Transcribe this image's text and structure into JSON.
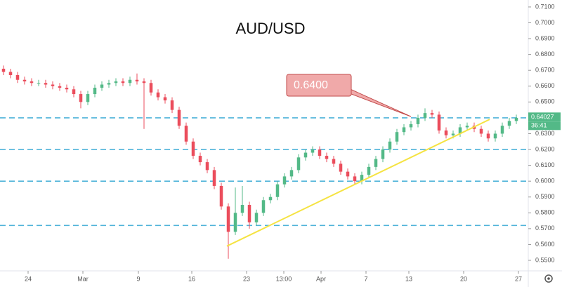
{
  "chart_data": {
    "type": "candlestick",
    "title": "AUD/USD",
    "open": [
      0.671,
      0.669,
      0.667,
      0.664,
      0.663,
      0.662,
      0.662,
      0.661,
      0.66,
      0.659,
      0.658,
      0.655,
      0.65,
      0.655,
      0.659,
      0.661,
      0.662,
      0.663,
      0.662,
      0.664,
      0.663,
      0.662,
      0.656,
      0.653,
      0.651,
      0.645,
      0.635,
      0.625,
      0.616,
      0.612,
      0.607,
      0.597,
      0.584,
      0.568,
      0.58,
      0.585,
      0.574,
      0.58,
      0.588,
      0.59,
      0.598,
      0.603,
      0.607,
      0.615,
      0.618,
      0.62,
      0.616,
      0.614,
      0.611,
      0.606,
      0.603,
      0.6,
      0.604,
      0.609,
      0.614,
      0.62,
      0.625,
      0.631,
      0.634,
      0.636,
      0.64,
      0.643,
      0.642,
      0.632,
      0.629,
      0.63,
      0.634,
      0.635,
      0.633,
      0.63,
      0.627,
      0.63,
      0.635,
      0.638
    ],
    "high": [
      0.673,
      0.671,
      0.669,
      0.666,
      0.665,
      0.664,
      0.664,
      0.663,
      0.662,
      0.661,
      0.66,
      0.657,
      0.657,
      0.661,
      0.663,
      0.664,
      0.665,
      0.665,
      0.666,
      0.668,
      0.665,
      0.664,
      0.658,
      0.655,
      0.653,
      0.647,
      0.637,
      0.627,
      0.618,
      0.614,
      0.609,
      0.599,
      0.586,
      0.596,
      0.597,
      0.587,
      0.582,
      0.59,
      0.592,
      0.6,
      0.605,
      0.609,
      0.617,
      0.62,
      0.622,
      0.622,
      0.618,
      0.616,
      0.613,
      0.608,
      0.605,
      0.606,
      0.611,
      0.616,
      0.622,
      0.627,
      0.633,
      0.636,
      0.638,
      0.642,
      0.646,
      0.645,
      0.644,
      0.634,
      0.632,
      0.636,
      0.637,
      0.637,
      0.635,
      0.632,
      0.632,
      0.637,
      0.64,
      0.642
    ],
    "low": [
      0.667,
      0.665,
      0.662,
      0.661,
      0.66,
      0.66,
      0.659,
      0.658,
      0.657,
      0.656,
      0.653,
      0.646,
      0.648,
      0.653,
      0.657,
      0.659,
      0.66,
      0.66,
      0.66,
      0.661,
      0.633,
      0.654,
      0.651,
      0.649,
      0.643,
      0.633,
      0.623,
      0.614,
      0.61,
      0.605,
      0.595,
      0.582,
      0.551,
      0.566,
      0.578,
      0.57,
      0.572,
      0.578,
      0.586,
      0.588,
      0.596,
      0.601,
      0.605,
      0.613,
      0.616,
      0.614,
      0.612,
      0.609,
      0.604,
      0.601,
      0.598,
      0.598,
      0.602,
      0.607,
      0.612,
      0.618,
      0.623,
      0.629,
      0.632,
      0.634,
      0.638,
      0.64,
      0.63,
      0.627,
      0.627,
      0.628,
      0.632,
      0.631,
      0.628,
      0.625,
      0.625,
      0.628,
      0.633,
      0.636
    ],
    "close": [
      0.669,
      0.667,
      0.664,
      0.663,
      0.662,
      0.662,
      0.661,
      0.66,
      0.659,
      0.658,
      0.655,
      0.65,
      0.655,
      0.659,
      0.661,
      0.662,
      0.663,
      0.662,
      0.664,
      0.663,
      0.662,
      0.656,
      0.653,
      0.651,
      0.645,
      0.635,
      0.625,
      0.616,
      0.612,
      0.607,
      0.597,
      0.584,
      0.568,
      0.58,
      0.585,
      0.574,
      0.58,
      0.588,
      0.59,
      0.598,
      0.603,
      0.607,
      0.615,
      0.618,
      0.62,
      0.616,
      0.614,
      0.611,
      0.606,
      0.603,
      0.6,
      0.604,
      0.609,
      0.614,
      0.62,
      0.625,
      0.631,
      0.634,
      0.636,
      0.64,
      0.643,
      0.642,
      0.632,
      0.629,
      0.63,
      0.634,
      0.635,
      0.633,
      0.63,
      0.627,
      0.63,
      0.635,
      0.638,
      0.64
    ],
    "up_color": "#53b987",
    "down_color": "#eb4d5c",
    "xlim": [
      -0.5,
      74.5
    ],
    "xticks": [
      {
        "value": 3.5,
        "label": "24"
      },
      {
        "value": 11.3,
        "label": "Mar"
      },
      {
        "value": 19.2,
        "label": "9"
      },
      {
        "value": 26.8,
        "label": "16"
      },
      {
        "value": 34.6,
        "label": "23"
      },
      {
        "value": 39.9,
        "label": "13:00"
      },
      {
        "value": 45.2,
        "label": "Apr"
      },
      {
        "value": 51.6,
        "label": "7"
      },
      {
        "value": 57.7,
        "label": "13"
      },
      {
        "value": 65.5,
        "label": "20"
      },
      {
        "value": 73.3,
        "label": "27"
      }
    ],
    "ylim": [
      0.5438,
      0.7144
    ],
    "yticks": [
      {
        "value": 0.55,
        "label": "0.5500"
      },
      {
        "value": 0.56,
        "label": "0.5600"
      },
      {
        "value": 0.57,
        "label": "0.5700"
      },
      {
        "value": 0.58,
        "label": "0.5800"
      },
      {
        "value": 0.59,
        "label": "0.5900"
      },
      {
        "value": 0.6,
        "label": "0.6000"
      },
      {
        "value": 0.61,
        "label": "0.6100"
      },
      {
        "value": 0.62,
        "label": "0.6200"
      },
      {
        "value": 0.63,
        "label": "0.6300"
      },
      {
        "value": 0.64,
        "label": "0.6400"
      },
      {
        "value": 0.65,
        "label": "0.6500"
      },
      {
        "value": 0.66,
        "label": "0.6600"
      },
      {
        "value": 0.67,
        "label": "0.6700"
      },
      {
        "value": 0.68,
        "label": "0.6800"
      },
      {
        "value": 0.69,
        "label": "0.6900"
      },
      {
        "value": 0.7,
        "label": "0.7000"
      },
      {
        "value": 0.71,
        "label": "0.7100"
      }
    ],
    "levels": [
      0.64,
      0.62,
      0.6,
      0.572
    ],
    "level_color": "#4fb3d9",
    "trendline": {
      "x": [
        31.8,
        69.2
      ],
      "y": [
        0.559,
        0.639
      ],
      "color": "#f5e342"
    },
    "annotation": {
      "text": "0.6400",
      "x": 58,
      "y": 0.6408
    },
    "last_price": 0.64027,
    "countdown": "36:41"
  }
}
